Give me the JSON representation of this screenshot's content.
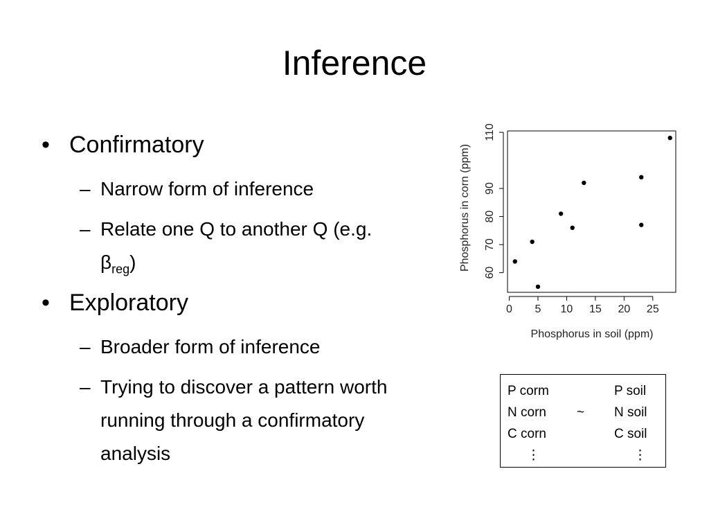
{
  "title": "Inference",
  "bullets": [
    {
      "text": "Confirmatory",
      "subs": [
        {
          "text": "Narrow form of inference"
        },
        {
          "text": "Relate one Q to another Q (e.g. β",
          "sub": "reg",
          "tail": ")"
        }
      ]
    },
    {
      "text": "Exploratory",
      "subs": [
        {
          "text": "Broader form of inference"
        },
        {
          "text": "Trying to discover a pattern worth running through a confirmatory analysis"
        }
      ]
    }
  ],
  "chart_data": {
    "type": "scatter",
    "x_label": "Phosphorus in soil (ppm)",
    "y_label": "Phosphorus in corn (ppm)",
    "x": [
      1,
      4,
      5,
      9,
      11,
      13,
      23,
      23,
      28
    ],
    "series": [
      {
        "color": "#000000",
        "values": [
          64,
          71,
          55,
          81,
          76,
          92,
          94,
          77,
          108
        ]
      }
    ],
    "xlim": [
      -0.3,
      29
    ],
    "ylim": [
      53,
      110.5
    ],
    "xticks": [
      0,
      5,
      10,
      15,
      20,
      25
    ],
    "yticks": [
      60,
      70,
      80,
      90,
      110
    ]
  },
  "box": {
    "left": [
      "P corm",
      "N corn",
      "C corn",
      "⋮"
    ],
    "middle": "~",
    "right": [
      "P soil",
      "N soil",
      "C soil",
      "⋮"
    ]
  }
}
